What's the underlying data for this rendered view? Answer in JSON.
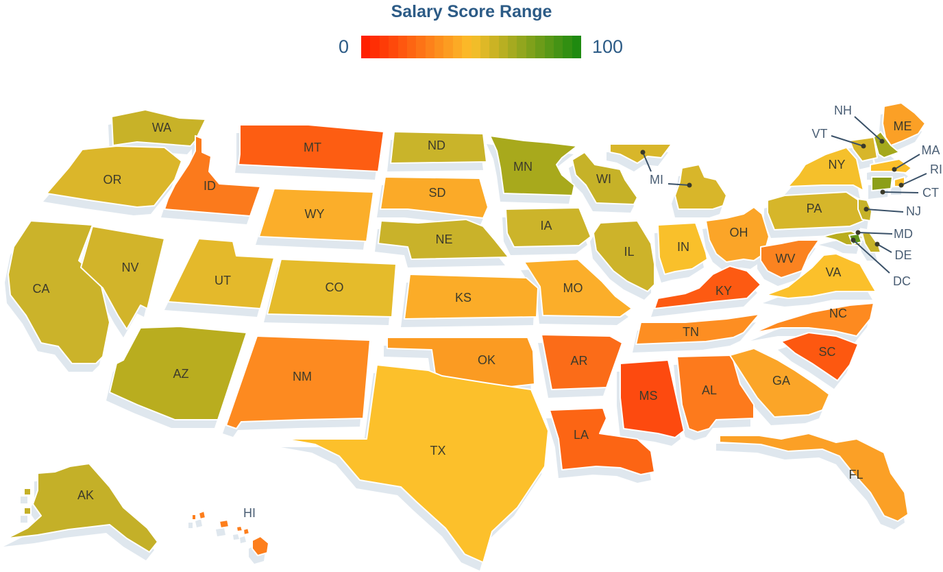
{
  "legend": {
    "title": "Salary Score Range",
    "min_label": "0",
    "max_label": "100",
    "low_color": "#ff2000",
    "mid_color": "#fbbf2a",
    "high_color": "#1f8a10"
  },
  "states": [
    {
      "code": "WA",
      "color": "#c8b228"
    },
    {
      "code": "OR",
      "color": "#dbb62a"
    },
    {
      "code": "CA",
      "color": "#cbb32a"
    },
    {
      "code": "NV",
      "color": "#d2b42a"
    },
    {
      "code": "ID",
      "color": "#fb7a1c"
    },
    {
      "code": "MT",
      "color": "#fd5d12"
    },
    {
      "code": "WY",
      "color": "#fbae2a"
    },
    {
      "code": "UT",
      "color": "#e4b92b"
    },
    {
      "code": "CO",
      "color": "#e5bb2b"
    },
    {
      "code": "AZ",
      "color": "#b9ad1f"
    },
    {
      "code": "NM",
      "color": "#fd8a20"
    },
    {
      "code": "ND",
      "color": "#c9b42a"
    },
    {
      "code": "SD",
      "color": "#fbaa28"
    },
    {
      "code": "NE",
      "color": "#c9b22a"
    },
    {
      "code": "KS",
      "color": "#fbac28"
    },
    {
      "code": "OK",
      "color": "#fb9b22"
    },
    {
      "code": "TX",
      "color": "#fcc02b"
    },
    {
      "code": "MN",
      "color": "#a8a91c"
    },
    {
      "code": "IA",
      "color": "#ccb42a"
    },
    {
      "code": "MO",
      "color": "#fbae2a"
    },
    {
      "code": "AR",
      "color": "#fb6c18"
    },
    {
      "code": "LA",
      "color": "#fc6514"
    },
    {
      "code": "WI",
      "color": "#c6b228"
    },
    {
      "code": "IL",
      "color": "#cdb32a"
    },
    {
      "code": "MS",
      "color": "#fd4a0f"
    },
    {
      "code": "MI",
      "color": "#d8b62a"
    },
    {
      "code": "IN",
      "color": "#f9c02b"
    },
    {
      "code": "KY",
      "color": "#fd5a12"
    },
    {
      "code": "TN",
      "color": "#fd8e22"
    },
    {
      "code": "AL",
      "color": "#fd7a1c"
    },
    {
      "code": "OH",
      "color": "#fba528"
    },
    {
      "code": "WV",
      "color": "#fb8320"
    },
    {
      "code": "VA",
      "color": "#fbc02b"
    },
    {
      "code": "NC",
      "color": "#fd8a20"
    },
    {
      "code": "SC",
      "color": "#fd5810"
    },
    {
      "code": "GA",
      "color": "#fba528"
    },
    {
      "code": "FL",
      "color": "#fba026"
    },
    {
      "code": "PA",
      "color": "#d6b62a"
    },
    {
      "code": "NY",
      "color": "#f5c02b"
    },
    {
      "code": "ME",
      "color": "#fba026"
    },
    {
      "code": "AK",
      "color": "#c4b028"
    },
    {
      "code": "HI",
      "color": "#fd7e1c"
    },
    {
      "code": "NH",
      "color": "#a4a81c"
    },
    {
      "code": "VT",
      "color": "#d8b62a"
    },
    {
      "code": "MA",
      "color": "#fbbf2a"
    },
    {
      "code": "RI",
      "color": "#fbbf2a"
    },
    {
      "code": "CT",
      "color": "#8c9f18"
    },
    {
      "code": "NJ",
      "color": "#c6b228"
    },
    {
      "code": "MD",
      "color": "#b9ad1f"
    },
    {
      "code": "DE",
      "color": "#c6b228"
    },
    {
      "code": "DC",
      "color": "#62961a"
    }
  ]
}
